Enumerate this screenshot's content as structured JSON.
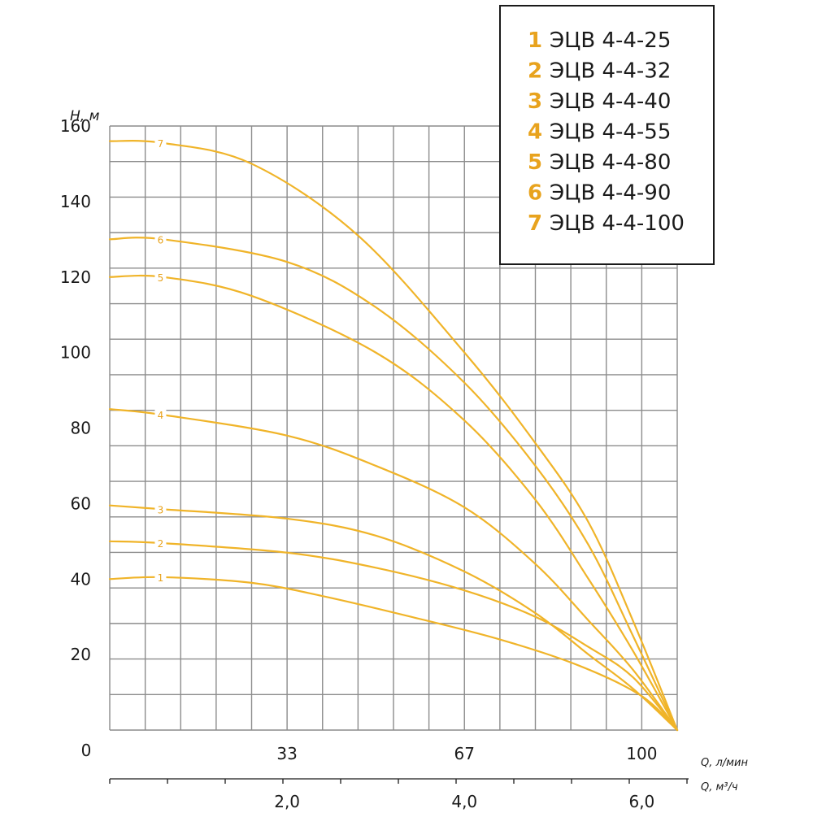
{
  "chart_data": {
    "type": "line",
    "ylabel": "H, м",
    "xlabel_primary": "Q, л/мин",
    "xlabel_secondary": "Q, м³/ч",
    "ylim": [
      0,
      160
    ],
    "yticks": [
      "20",
      "40",
      "60",
      "80",
      "100",
      "120",
      "140",
      "160"
    ],
    "origin_label": "0",
    "xlim_m3h": [
      0,
      6.4
    ],
    "x_primary_ticks": [
      {
        "label": "33",
        "value_m3h": 2.0
      },
      {
        "label": "67",
        "value_m3h": 4.0
      },
      {
        "label": "100",
        "value_m3h": 6.0
      }
    ],
    "x_secondary_ticks": [
      {
        "label": "2,0",
        "value_m3h": 2.0
      },
      {
        "label": "4,0",
        "value_m3h": 4.0
      },
      {
        "label": "6,0",
        "value_m3h": 6.0
      }
    ],
    "grid": true,
    "legend_position": "top-right",
    "curve_color": "#f0b429",
    "label_color": "#e8a31e",
    "series": [
      {
        "name": "ЭЦВ 4-4-25",
        "label": "1",
        "points": [
          [
            0,
            40
          ],
          [
            0.6,
            40.5
          ],
          [
            1.6,
            39
          ],
          [
            2.4,
            35.5
          ],
          [
            3.4,
            30
          ],
          [
            4.4,
            24
          ],
          [
            5.3,
            17
          ],
          [
            6.0,
            9
          ],
          [
            6.4,
            0
          ]
        ]
      },
      {
        "name": "ЭЦВ 4-4-32",
        "label": "2",
        "points": [
          [
            0,
            50
          ],
          [
            0.6,
            49.5
          ],
          [
            2.0,
            47
          ],
          [
            3.0,
            43
          ],
          [
            4.0,
            37
          ],
          [
            4.8,
            30
          ],
          [
            5.4,
            22
          ],
          [
            5.9,
            14
          ],
          [
            6.4,
            0
          ]
        ]
      },
      {
        "name": "ЭЦВ 4-4-40",
        "label": "3",
        "points": [
          [
            0,
            59.5
          ],
          [
            0.6,
            58.5
          ],
          [
            2.0,
            56
          ],
          [
            3.0,
            51.5
          ],
          [
            4.0,
            42
          ],
          [
            4.8,
            31
          ],
          [
            5.4,
            20
          ],
          [
            5.9,
            11
          ],
          [
            6.4,
            0
          ]
        ]
      },
      {
        "name": "ЭЦВ 4-4-55",
        "label": "4",
        "points": [
          [
            0,
            85
          ],
          [
            0.6,
            83.5
          ],
          [
            2.0,
            78
          ],
          [
            3.0,
            70
          ],
          [
            4.0,
            59
          ],
          [
            4.8,
            44
          ],
          [
            5.4,
            29
          ],
          [
            5.9,
            16
          ],
          [
            6.4,
            0
          ]
        ]
      },
      {
        "name": "ЭЦВ 4-4-80",
        "label": "5",
        "points": [
          [
            0,
            120
          ],
          [
            0.6,
            120
          ],
          [
            1.6,
            115
          ],
          [
            3.0,
            100
          ],
          [
            4.0,
            82
          ],
          [
            4.8,
            61
          ],
          [
            5.4,
            40
          ],
          [
            5.9,
            21
          ],
          [
            6.4,
            0
          ]
        ]
      },
      {
        "name": "ЭЦВ 4-4-90",
        "label": "6",
        "points": [
          [
            0,
            130
          ],
          [
            0.6,
            130
          ],
          [
            2.0,
            124
          ],
          [
            3.0,
            112
          ],
          [
            4.0,
            92
          ],
          [
            4.8,
            70
          ],
          [
            5.4,
            49
          ],
          [
            5.9,
            25
          ],
          [
            6.4,
            0
          ]
        ]
      },
      {
        "name": "ЭЦВ 4-4-100",
        "label": "7",
        "points": [
          [
            0,
            156
          ],
          [
            0.6,
            155.5
          ],
          [
            1.6,
            150
          ],
          [
            2.8,
            131
          ],
          [
            4.0,
            100
          ],
          [
            4.8,
            76
          ],
          [
            5.4,
            55
          ],
          [
            5.9,
            29
          ],
          [
            6.4,
            0
          ]
        ]
      }
    ]
  }
}
